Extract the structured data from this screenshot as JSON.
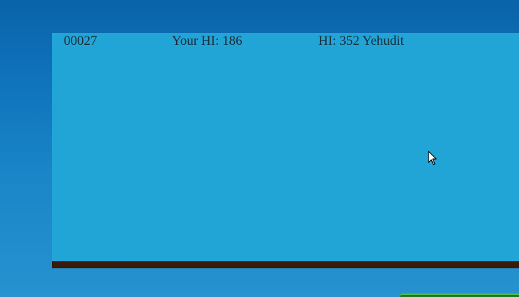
{
  "hud": {
    "score": "00027",
    "your_hi": "Your HI: 186",
    "global_hi": "HI: 352 Yehudit"
  },
  "colors": {
    "sky": "#21a4d6",
    "ground": "#3a1a08",
    "background": "#0d6fb8",
    "text": "#1c2a36"
  },
  "icons": {
    "cursor": "mouse-pointer-icon"
  }
}
